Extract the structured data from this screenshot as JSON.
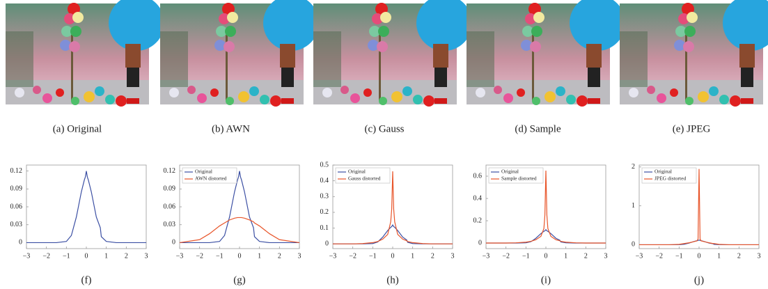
{
  "images": [
    {
      "caption": "(a) Original"
    },
    {
      "caption": "(b) AWN"
    },
    {
      "caption": "(c) Gauss"
    },
    {
      "caption": "(d) Sample"
    },
    {
      "caption": "(e) JPEG"
    }
  ],
  "chart_data": [
    {
      "type": "line",
      "caption": "(f)",
      "x": [
        -3,
        -2,
        -1.5,
        -1,
        -0.75,
        -0.5,
        -0.25,
        -0.1,
        -0.05,
        0,
        0.05,
        0.1,
        0.25,
        0.5,
        0.7,
        0.75,
        1,
        1.5,
        2,
        3
      ],
      "series": [
        {
          "color": "#3b4fa3",
          "values": [
            0,
            0,
            0,
            0.002,
            0.012,
            0.043,
            0.085,
            0.105,
            0.11,
            0.12,
            0.11,
            0.105,
            0.085,
            0.043,
            0.025,
            0.01,
            0.002,
            0,
            0,
            0
          ]
        }
      ],
      "xlim": [
        -3,
        3
      ],
      "ylim": [
        -0.01,
        0.13
      ],
      "xticks": [
        {
          "value": -3,
          "label": "−3"
        },
        {
          "value": -2,
          "label": "−2"
        },
        {
          "value": -1,
          "label": "−1"
        },
        0,
        1,
        2,
        3
      ],
      "yticks": [
        0,
        0.03,
        0.06,
        0.09,
        0.12
      ]
    },
    {
      "type": "line",
      "caption": "(g)",
      "x": [
        -3,
        -2,
        -1.5,
        -1,
        -0.75,
        -0.5,
        -0.25,
        -0.1,
        -0.05,
        0,
        0.05,
        0.1,
        0.25,
        0.5,
        0.7,
        0.75,
        1,
        1.5,
        2,
        3
      ],
      "series": [
        {
          "name": "Original",
          "color": "#3b4fa3",
          "values": [
            0,
            0,
            0,
            0.002,
            0.012,
            0.043,
            0.085,
            0.105,
            0.11,
            0.12,
            0.11,
            0.105,
            0.085,
            0.043,
            0.025,
            0.01,
            0.002,
            0,
            0,
            0
          ]
        },
        {
          "name": "AWN distorted",
          "color": "#e8552a",
          "values": [
            0,
            0.005,
            0.015,
            0.028,
            0.033,
            0.038,
            0.041,
            0.042,
            0.042,
            0.042,
            0.042,
            0.042,
            0.041,
            0.038,
            0.035,
            0.033,
            0.028,
            0.015,
            0.005,
            0
          ]
        }
      ],
      "xlim": [
        -3,
        3
      ],
      "ylim": [
        -0.01,
        0.13
      ],
      "xticks": [
        {
          "value": -3,
          "label": "−3"
        },
        {
          "value": -2,
          "label": "−2"
        },
        {
          "value": -1,
          "label": "−1"
        },
        0,
        1,
        2,
        3
      ],
      "yticks": [
        0,
        0.03,
        0.06,
        0.09,
        0.12
      ],
      "legend": "upper-left"
    },
    {
      "type": "line",
      "caption": "(h)",
      "x": [
        -3,
        -2,
        -1.5,
        -1,
        -0.75,
        -0.5,
        -0.25,
        -0.1,
        -0.05,
        0,
        0.05,
        0.1,
        0.25,
        0.5,
        0.7,
        0.75,
        1,
        1.5,
        2,
        3
      ],
      "series": [
        {
          "name": "Original",
          "color": "#3b4fa3",
          "values": [
            0,
            0,
            0,
            0.002,
            0.012,
            0.043,
            0.085,
            0.105,
            0.11,
            0.12,
            0.11,
            0.105,
            0.085,
            0.043,
            0.025,
            0.01,
            0.002,
            0,
            0,
            0
          ]
        },
        {
          "name": "Gauss distorted",
          "color": "#e8552a",
          "values": [
            0,
            0,
            0.002,
            0.008,
            0.015,
            0.03,
            0.06,
            0.14,
            0.22,
            0.46,
            0.22,
            0.14,
            0.06,
            0.03,
            0.02,
            0.015,
            0.008,
            0.002,
            0,
            0
          ]
        }
      ],
      "xlim": [
        -3,
        3
      ],
      "ylim": [
        -0.03,
        0.5
      ],
      "xticks": [
        {
          "value": -3,
          "label": "−3"
        },
        {
          "value": -2,
          "label": "−2"
        },
        {
          "value": -1,
          "label": "−1"
        },
        0,
        1,
        2,
        3
      ],
      "yticks": [
        0,
        0.1,
        0.2,
        0.3,
        0.4,
        0.5
      ],
      "legend": "upper-left"
    },
    {
      "type": "line",
      "caption": "(i)",
      "x": [
        -3,
        -2,
        -1.5,
        -1,
        -0.75,
        -0.5,
        -0.25,
        -0.1,
        -0.05,
        0,
        0.05,
        0.1,
        0.25,
        0.5,
        0.7,
        0.75,
        1,
        1.5,
        2,
        3
      ],
      "series": [
        {
          "name": "Original",
          "color": "#3b4fa3",
          "values": [
            0,
            0,
            0,
            0.002,
            0.012,
            0.043,
            0.085,
            0.105,
            0.11,
            0.12,
            0.11,
            0.105,
            0.085,
            0.043,
            0.025,
            0.01,
            0.002,
            0,
            0,
            0
          ]
        },
        {
          "name": "Sample distorted",
          "color": "#e8552a",
          "values": [
            0,
            0,
            0.002,
            0.008,
            0.015,
            0.03,
            0.06,
            0.13,
            0.25,
            0.65,
            0.25,
            0.13,
            0.06,
            0.03,
            0.02,
            0.015,
            0.008,
            0.002,
            0,
            0
          ]
        }
      ],
      "xlim": [
        -3,
        3
      ],
      "ylim": [
        -0.05,
        0.7
      ],
      "xticks": [
        {
          "value": -3,
          "label": "−3"
        },
        {
          "value": -2,
          "label": "−2"
        },
        {
          "value": -1,
          "label": "−1"
        },
        0,
        1,
        2,
        3
      ],
      "yticks": [
        0,
        0.2,
        0.4,
        0.6
      ],
      "legend": "upper-left"
    },
    {
      "type": "line",
      "caption": "(j)",
      "x": [
        -3,
        -2,
        -1.5,
        -1,
        -0.75,
        -0.5,
        -0.25,
        -0.1,
        -0.05,
        0,
        0.05,
        0.1,
        0.25,
        0.5,
        0.7,
        0.75,
        1,
        1.5,
        2,
        3
      ],
      "series": [
        {
          "name": "Original",
          "color": "#3b4fa3",
          "values": [
            0,
            0,
            0,
            0.002,
            0.012,
            0.043,
            0.085,
            0.105,
            0.11,
            0.12,
            0.11,
            0.105,
            0.085,
            0.043,
            0.025,
            0.01,
            0.002,
            0,
            0,
            0
          ]
        },
        {
          "name": "JPEG distorted",
          "color": "#e8552a",
          "values": [
            0,
            0,
            0,
            0.01,
            0.03,
            0.05,
            0.08,
            0.1,
            0.15,
            1.95,
            0.15,
            0.1,
            0.08,
            0.05,
            0.03,
            0.03,
            0.01,
            0,
            0,
            0
          ]
        }
      ],
      "xlim": [
        -3,
        3
      ],
      "ylim": [
        -0.1,
        2.05
      ],
      "xticks": [
        {
          "value": -3,
          "label": "−3"
        },
        {
          "value": -2,
          "label": "−2"
        },
        {
          "value": -1,
          "label": "−1"
        },
        0,
        1,
        2,
        3
      ],
      "yticks": [
        0,
        1,
        2
      ],
      "legend": "upper-left"
    }
  ]
}
